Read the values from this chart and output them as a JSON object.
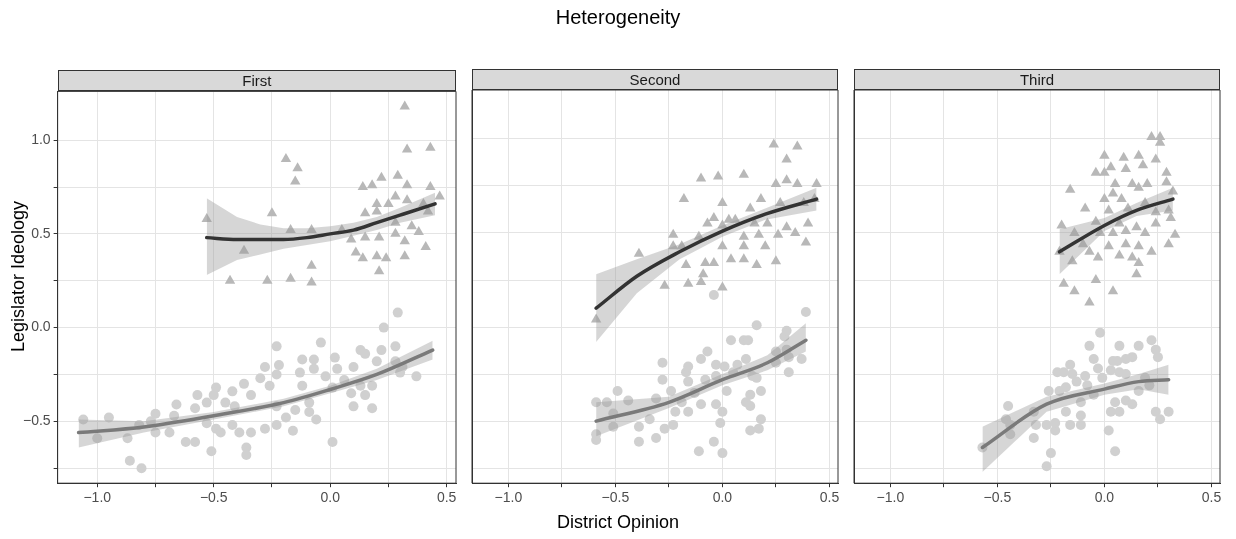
{
  "chart_data": [
    {
      "type": "scatter",
      "subtitle": "First",
      "ylabel": "Legislator Ideology",
      "xlim": [
        -1.17,
        0.54
      ],
      "ylim": [
        -0.83,
        1.26
      ],
      "xticks": [
        {
          "value": -1,
          "label": "−1.0"
        },
        {
          "value": -0.75,
          "label": null
        },
        {
          "value": -0.5,
          "label": "−0.5"
        },
        {
          "value": -0.25,
          "label": null
        },
        {
          "value": 0,
          "label": "0.0"
        },
        {
          "value": 0.25,
          "label": null
        },
        {
          "value": 0.5,
          "label": "0.5"
        }
      ],
      "yticks": [
        {
          "value": -0.75,
          "label": null
        },
        {
          "value": -0.5,
          "label": "−0.5"
        },
        {
          "value": -0.25,
          "label": null
        },
        {
          "value": 0,
          "label": "0.0"
        },
        {
          "value": 0.25,
          "label": null
        },
        {
          "value": 0.5,
          "label": "0.5"
        },
        {
          "value": 0.75,
          "label": null
        },
        {
          "value": 1,
          "label": "1.0"
        }
      ],
      "grid": true,
      "series": [
        {
          "marker": "triangle",
          "color": "#b8b8b8",
          "x": [
            -0.53,
            -0.43,
            -0.37,
            -0.27,
            -0.25,
            -0.19,
            -0.14,
            -0.15,
            -0.17,
            -0.08,
            -0.08,
            -0.17,
            -0.08,
            0.05,
            0.09,
            0.11,
            0.14,
            0.18,
            0.22,
            0.29,
            0.33,
            0.32,
            0.33,
            0.43,
            0.43,
            0.47,
            0.14,
            0.2,
            0.21,
            0.24,
            0.32,
            0.41,
            0.28,
            0.32,
            0.38,
            0.2,
            0.25,
            0.15,
            0.21,
            0.28,
            0.33,
            0.4,
            0.15,
            0.2,
            0.28,
            0.35,
            0.42
          ],
          "values": [
            0.58,
            0.25,
            0.41,
            0.25,
            0.61,
            0.9,
            0.85,
            0.78,
            0.26,
            0.33,
            0.24,
            0.52,
            0.52,
            0.52,
            0.47,
            0.4,
            0.75,
            0.76,
            0.8,
            0.81,
            0.76,
            1.18,
            0.95,
            0.96,
            0.75,
            0.7,
            0.37,
            0.38,
            0.3,
            0.37,
            0.38,
            0.43,
            0.5,
            0.46,
            0.51,
            0.66,
            0.66,
            0.48,
            0.48,
            0.56,
            0.68,
            0.66,
            0.61,
            0.62,
            0.7,
            0.54,
            0.62
          ]
        },
        {
          "marker": "circle",
          "color": "#d0d0d0",
          "x": [
            -1.06,
            -1,
            -0.95,
            -0.87,
            -0.86,
            -0.81,
            -0.82,
            -0.77,
            -0.75,
            -0.75,
            -0.69,
            -0.67,
            -0.66,
            -0.62,
            -0.58,
            -0.57,
            -0.58,
            -0.53,
            -0.53,
            -0.51,
            -0.5,
            -0.49,
            -0.49,
            -0.47,
            -0.45,
            -0.42,
            -0.42,
            -0.41,
            -0.39,
            -0.37,
            -0.34,
            -0.34,
            -0.36,
            -0.36,
            -0.3,
            -0.28,
            -0.26,
            -0.28,
            -0.23,
            -0.22,
            -0.23,
            -0.23,
            -0.23,
            -0.19,
            -0.16,
            -0.15,
            -0.13,
            -0.12,
            -0.12,
            -0.09,
            -0.09,
            -0.06,
            -0.07,
            -0.07,
            -0.04,
            -0.02,
            0.01,
            0.01,
            0.02,
            0.03,
            0.06,
            0.09,
            0.1,
            0.1,
            0.13,
            0.13,
            0.15,
            0.18,
            0.18,
            0.15,
            0.2,
            0.22,
            0.23,
            0.28,
            0.28,
            0.29,
            0.3,
            0.31,
            0.37
          ],
          "values": [
            -0.49,
            -0.59,
            -0.48,
            -0.59,
            -0.71,
            -0.75,
            -0.52,
            -0.5,
            -0.46,
            -0.56,
            -0.56,
            -0.47,
            -0.41,
            -0.61,
            -0.61,
            -0.36,
            -0.43,
            -0.4,
            -0.51,
            -0.66,
            -0.36,
            -0.32,
            -0.54,
            -0.56,
            -0.4,
            -0.52,
            -0.34,
            -0.42,
            -0.56,
            -0.3,
            -0.36,
            -0.56,
            -0.64,
            -0.68,
            -0.27,
            -0.21,
            -0.31,
            -0.54,
            -0.1,
            -0.2,
            -0.25,
            -0.52,
            -0.42,
            -0.48,
            -0.55,
            -0.44,
            -0.24,
            -0.17,
            -0.31,
            -0.4,
            -0.45,
            -0.49,
            -0.17,
            -0.22,
            -0.08,
            -0.26,
            -0.61,
            -0.32,
            -0.16,
            -0.22,
            -0.28,
            -0.35,
            -0.42,
            -0.21,
            -0.12,
            -0.31,
            -0.36,
            -0.43,
            -0.31,
            -0.14,
            -0.18,
            -0.12,
            0,
            -0.1,
            -0.18,
            0.08,
            -0.24,
            -0.21,
            -0.26
          ]
        },
        {
          "type": "line",
          "marker": "none",
          "color": "#333333",
          "x": [
            -0.53,
            -0.4,
            -0.3,
            -0.2,
            -0.1,
            0,
            0.1,
            0.2,
            0.3,
            0.45
          ],
          "values": [
            0.48,
            0.47,
            0.47,
            0.47,
            0.48,
            0.5,
            0.52,
            0.56,
            0.6,
            0.66
          ],
          "lower": [
            0.28,
            0.36,
            0.39,
            0.42,
            0.44,
            0.46,
            0.49,
            0.52,
            0.56,
            0.6
          ],
          "upper": [
            0.69,
            0.59,
            0.55,
            0.53,
            0.53,
            0.54,
            0.56,
            0.59,
            0.64,
            0.72
          ]
        },
        {
          "type": "line",
          "marker": "none",
          "color": "#7a7a7a",
          "x": [
            -1.08,
            -0.8,
            -0.5,
            -0.2,
            0,
            0.2,
            0.44
          ],
          "values": [
            -0.56,
            -0.53,
            -0.47,
            -0.4,
            -0.33,
            -0.25,
            -0.12
          ],
          "lower": [
            -0.64,
            -0.56,
            -0.49,
            -0.42,
            -0.35,
            -0.28,
            -0.17
          ],
          "upper": [
            -0.49,
            -0.5,
            -0.45,
            -0.38,
            -0.31,
            -0.22,
            -0.07
          ]
        }
      ]
    },
    {
      "type": "scatter",
      "title": "Heterogeneity",
      "subtitle": "Second",
      "xlabel": "District Opinion",
      "tick_labels": "x",
      "xlim": [
        -1.17,
        0.54
      ],
      "ylim": [
        -0.83,
        1.26
      ],
      "xticks": [
        {
          "value": -1,
          "label": "−1.0"
        },
        {
          "value": -0.75,
          "label": null
        },
        {
          "value": -0.5,
          "label": "−0.5"
        },
        {
          "value": -0.25,
          "label": null
        },
        {
          "value": 0,
          "label": "0.0"
        },
        {
          "value": 0.25,
          "label": null
        },
        {
          "value": 0.5,
          "label": "0.5"
        }
      ],
      "yticks": [
        {
          "value": -0.75,
          "label": null
        },
        {
          "value": -0.5,
          "label": null
        },
        {
          "value": -0.25,
          "label": null
        },
        {
          "value": 0,
          "label": null
        },
        {
          "value": 0.25,
          "label": null
        },
        {
          "value": 0.5,
          "label": null
        },
        {
          "value": 0.75,
          "label": null
        },
        {
          "value": 1,
          "label": null
        }
      ],
      "grid": true,
      "series": [
        {
          "marker": "triangle",
          "color": "#b8b8b8",
          "x": [
            -0.59,
            -0.39,
            -0.18,
            -0.1,
            -0.02,
            -0.23,
            -0.23,
            -0.27,
            -0.16,
            -0.1,
            -0.19,
            -0.17,
            -0.11,
            -0.08,
            -0.04,
            -0.09,
            0,
            0,
            -0.07,
            -0.04,
            0,
            0.03,
            0.06,
            0,
            0.04,
            0.1,
            0.1,
            0.16,
            0.1,
            0.13,
            0.1,
            0.15,
            0.18,
            0.2,
            0.21,
            0.25,
            0.24,
            0.25,
            0.3,
            0.35,
            0.3,
            0.35,
            0.27,
            0.3,
            0.34,
            0.39,
            0.4,
            0.38,
            0.43,
            0.44,
            0.26,
            0.17
          ],
          "values": [
            0.04,
            0.39,
            0.68,
            0.79,
            0.8,
            0.49,
            0.43,
            0.22,
            0.23,
            0.24,
            0.43,
            0.33,
            0.48,
            0.34,
            0.34,
            0.28,
            0.21,
            0.66,
            0.55,
            0.58,
            0.54,
            0.57,
            0.57,
            0.43,
            0.36,
            0.36,
            0.43,
            0.33,
            0.48,
            0.63,
            0.81,
            0.55,
            0.68,
            0.43,
            0.55,
            0.76,
            0.97,
            0.35,
            0.89,
            0.96,
            0.78,
            0.76,
            0.66,
            0.53,
            0.5,
            0.45,
            0.55,
            0.66,
            0.68,
            0.76,
            0.49,
            0.49
          ]
        },
        {
          "marker": "circle",
          "color": "#d0d0d0",
          "x": [
            -0.04,
            0.39,
            0.16,
            0.04,
            0.1,
            0.12,
            -0.59,
            -0.54,
            -0.59,
            -0.59,
            -0.51,
            -0.51,
            -0.49,
            -0.44,
            -0.39,
            -0.39,
            -0.34,
            -0.31,
            -0.31,
            -0.28,
            -0.28,
            -0.27,
            -0.24,
            -0.23,
            -0.22,
            -0.19,
            -0.17,
            -0.16,
            -0.16,
            -0.16,
            -0.13,
            -0.1,
            -0.1,
            -0.07,
            -0.08,
            -0.11,
            -0.03,
            -0.03,
            -0.03,
            -0.04,
            -0.01,
            0,
            0,
            0.01,
            0.02,
            0.05,
            0.07,
            0.11,
            0.11,
            0.13,
            0.13,
            0.13,
            0.14,
            0.16,
            0.18,
            0.18,
            0.17,
            0.25,
            0.25,
            0.29,
            0.3,
            0.3,
            0.31,
            0.31,
            0.37
          ],
          "values": [
            0.17,
            0.08,
            0.01,
            -0.07,
            -0.07,
            -0.07,
            -0.4,
            -0.4,
            -0.57,
            -0.6,
            -0.46,
            -0.53,
            -0.34,
            -0.39,
            -0.53,
            -0.61,
            -0.49,
            -0.59,
            -0.38,
            -0.19,
            -0.28,
            -0.54,
            -0.34,
            -0.52,
            -0.45,
            -0.4,
            -0.24,
            -0.21,
            -0.29,
            -0.45,
            -0.35,
            -0.41,
            -0.17,
            -0.13,
            -0.28,
            -0.66,
            -0.41,
            -0.2,
            -0.26,
            -0.61,
            -0.51,
            -0.45,
            -0.67,
            -0.21,
            -0.34,
            -0.24,
            -0.2,
            -0.17,
            -0.4,
            -0.42,
            -0.36,
            -0.55,
            -0.26,
            -0.27,
            -0.34,
            -0.49,
            -0.54,
            -0.13,
            -0.19,
            -0.05,
            -0.02,
            -0.12,
            -0.16,
            -0.24,
            -0.17
          ]
        },
        {
          "type": "line",
          "marker": "none",
          "color": "#333333",
          "x": [
            -0.59,
            -0.4,
            -0.2,
            0,
            0.2,
            0.44
          ],
          "values": [
            0.1,
            0.27,
            0.4,
            0.51,
            0.6,
            0.68
          ],
          "lower": [
            -0.08,
            0.18,
            0.36,
            0.48,
            0.57,
            0.62
          ],
          "upper": [
            0.28,
            0.36,
            0.44,
            0.54,
            0.63,
            0.74
          ]
        },
        {
          "type": "line",
          "marker": "none",
          "color": "#7a7a7a",
          "x": [
            -0.59,
            -0.25,
            0,
            0.21,
            0.39
          ],
          "values": [
            -0.5,
            -0.4,
            -0.28,
            -0.19,
            -0.07
          ],
          "lower": [
            -0.58,
            -0.43,
            -0.31,
            -0.23,
            -0.13
          ],
          "upper": [
            -0.4,
            -0.37,
            -0.25,
            -0.15,
            0.02
          ]
        }
      ]
    },
    {
      "type": "scatter",
      "subtitle": "Third",
      "tick_labels": "x",
      "xlim": [
        -1.17,
        0.54
      ],
      "ylim": [
        -0.83,
        1.26
      ],
      "xticks": [
        {
          "value": -1,
          "label": "−1.0"
        },
        {
          "value": -0.75,
          "label": null
        },
        {
          "value": -0.5,
          "label": "−0.5"
        },
        {
          "value": -0.25,
          "label": null
        },
        {
          "value": 0,
          "label": "0.0"
        },
        {
          "value": 0.25,
          "label": null
        },
        {
          "value": 0.5,
          "label": "0.5"
        }
      ],
      "yticks": [
        {
          "value": -0.75,
          "label": null
        },
        {
          "value": -0.5,
          "label": null
        },
        {
          "value": -0.25,
          "label": null
        },
        {
          "value": 0,
          "label": null
        },
        {
          "value": 0.25,
          "label": null
        },
        {
          "value": 0.5,
          "label": null
        },
        {
          "value": 0.75,
          "label": null
        },
        {
          "value": 1,
          "label": null
        }
      ],
      "grid": true,
      "series": [
        {
          "marker": "triangle",
          "color": "#b8b8b8",
          "x": [
            0.22,
            0.26,
            0.26,
            0,
            0.09,
            0.16,
            0.24,
            0.03,
            0.1,
            0.18,
            -0.04,
            0,
            0.29,
            -0.16,
            0.05,
            0.13,
            0.16,
            0.2,
            0.29,
            0.32,
            0,
            0.04,
            0.08,
            -0.09,
            0.02,
            0.11,
            0.19,
            0.24,
            0.3,
            0.31,
            -0.04,
            0.07,
            0.15,
            0.24,
            -0.2,
            -0.14,
            -0.02,
            0.04,
            0.1,
            0.19,
            0.33,
            0.3,
            -0.1,
            0.02,
            0.1,
            0.16,
            0.22,
            -0.21,
            -0.07,
            0.07,
            -0.03,
            -0.15,
            0.13,
            0.16,
            0.15,
            -0.19,
            -0.04,
            -0.14,
            0.04,
            -0.07
          ],
          "values": [
            1.01,
            1.01,
            0.98,
            0.91,
            0.9,
            0.91,
            0.89,
            0.85,
            0.84,
            0.86,
            0.82,
            0.82,
            0.82,
            0.73,
            0.76,
            0.76,
            0.74,
            0.76,
            0.77,
            0.72,
            0.68,
            0.71,
            0.68,
            0.63,
            0.62,
            0.63,
            0.66,
            0.61,
            0.62,
            0.58,
            0.56,
            0.55,
            0.53,
            0.55,
            0.54,
            0.5,
            0.5,
            0.5,
            0.51,
            0.5,
            0.49,
            0.44,
            0.44,
            0.43,
            0.44,
            0.43,
            0.4,
            0.4,
            0.4,
            0.38,
            0.37,
            0.35,
            0.37,
            0.34,
            0.28,
            0.23,
            0.25,
            0.19,
            0.19,
            0.13
          ]
        },
        {
          "marker": "circle",
          "color": "#d0d0d0",
          "x": [
            -0.57,
            -0.45,
            -0.46,
            -0.44,
            -0.44,
            -0.33,
            -0.33,
            -0.32,
            -0.27,
            -0.27,
            -0.25,
            -0.26,
            -0.23,
            -0.23,
            -0.22,
            -0.19,
            -0.21,
            -0.18,
            -0.18,
            -0.16,
            -0.15,
            -0.16,
            -0.13,
            -0.11,
            -0.11,
            -0.11,
            -0.09,
            -0.08,
            -0.07,
            -0.05,
            -0.05,
            -0.03,
            -0.02,
            -0.01,
            0.02,
            0.03,
            0.03,
            0.04,
            0.05,
            0.05,
            0.06,
            0.07,
            0.07,
            0.07,
            0.1,
            0.1,
            0.1,
            0.13,
            0.13,
            0.16,
            0.16,
            0.19,
            0.21,
            0.22,
            0.24,
            0.25,
            0.24,
            0.26,
            0.3
          ],
          "values": [
            -0.64,
            -0.42,
            -0.49,
            -0.52,
            -0.57,
            -0.45,
            -0.59,
            -0.52,
            -0.52,
            -0.74,
            -0.67,
            -0.34,
            -0.55,
            -0.51,
            -0.24,
            -0.24,
            -0.34,
            -0.32,
            -0.45,
            -0.2,
            -0.25,
            -0.52,
            -0.29,
            -0.4,
            -0.47,
            -0.52,
            -0.26,
            -0.31,
            -0.1,
            -0.17,
            -0.36,
            -0.22,
            -0.03,
            -0.27,
            -0.55,
            -0.45,
            -0.23,
            -0.18,
            -0.4,
            -0.66,
            -0.18,
            -0.1,
            -0.45,
            -0.24,
            -0.17,
            -0.25,
            -0.39,
            -0.41,
            -0.16,
            -0.34,
            -0.1,
            -0.27,
            -0.31,
            -0.07,
            -0.12,
            -0.16,
            -0.45,
            -0.49,
            -0.45
          ]
        },
        {
          "type": "line",
          "marker": "none",
          "color": "#333333",
          "x": [
            -0.21,
            0,
            0.15,
            0.32
          ],
          "values": [
            0.4,
            0.54,
            0.62,
            0.68
          ],
          "lower": [
            0.28,
            0.51,
            0.59,
            0.62
          ],
          "upper": [
            0.52,
            0.58,
            0.66,
            0.74
          ]
        },
        {
          "type": "line",
          "marker": "none",
          "color": "#7a7a7a",
          "x": [
            -0.57,
            -0.27,
            0,
            0.16,
            0.3
          ],
          "values": [
            -0.64,
            -0.41,
            -0.33,
            -0.29,
            -0.28
          ],
          "lower": [
            -0.77,
            -0.45,
            -0.36,
            -0.33,
            -0.36
          ],
          "upper": [
            -0.53,
            -0.37,
            -0.3,
            -0.25,
            -0.2
          ]
        }
      ]
    }
  ]
}
